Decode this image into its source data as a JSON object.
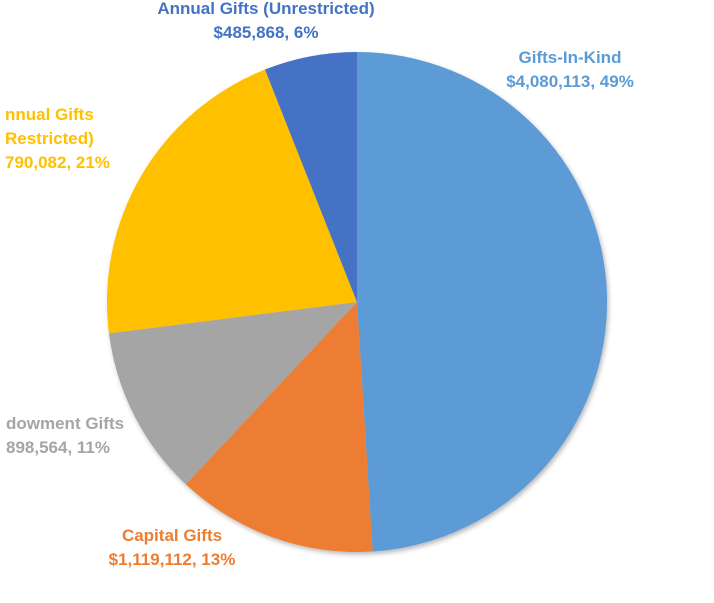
{
  "chart_data": {
    "type": "pie",
    "title": "",
    "start_angle_deg": 0,
    "direction": "clockwise",
    "slices": [
      {
        "name": "Gifts-In-Kind",
        "label_name": "Gifts-In-Kind",
        "value_text": "$4,080,113, 49%",
        "value": 4080113,
        "percent": 49,
        "color": "#5B9BD5"
      },
      {
        "name": "Capital Gifts",
        "label_name": "Capital Gifts",
        "value_text": "$1,119,112, 13%",
        "value": 1119112,
        "percent": 13,
        "color": "#ED7D31"
      },
      {
        "name": "Endowment Gifts",
        "label_name": "dowment Gifts",
        "value_text": "898,564, 11%",
        "value": 898564,
        "percent": 11,
        "color": "#A5A5A5"
      },
      {
        "name": "Annual Gifts (Restricted)",
        "label_name_line1": "nnual Gifts",
        "label_name_line2": "Restricted)",
        "value_text": "790,082, 21%",
        "percent": 21,
        "color": "#FFC000"
      },
      {
        "name": "Annual Gifts (Unrestricted)",
        "label_name": "Annual Gifts (Unrestricted)",
        "value_text": "$485,868, 6%",
        "value": 485868,
        "percent": 6,
        "color": "#4472C4"
      }
    ]
  }
}
